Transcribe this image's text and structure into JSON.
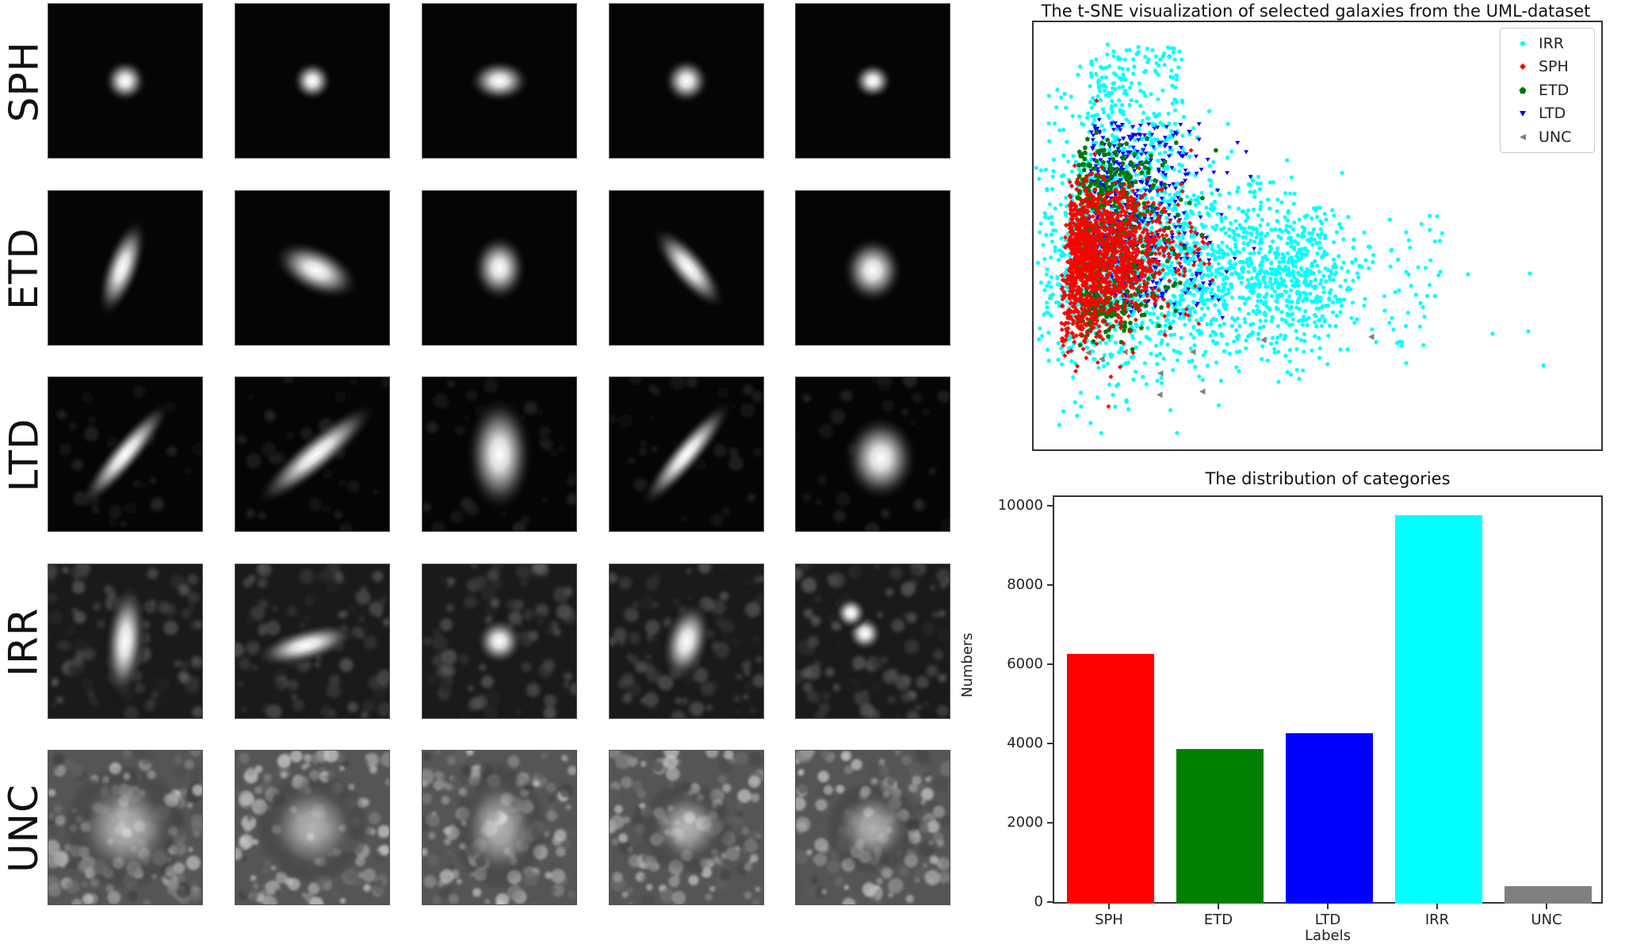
{
  "galaxy_grid": {
    "rows": [
      {
        "label": "SPH",
        "kind": "compact"
      },
      {
        "label": "ETD",
        "kind": "elliptical"
      },
      {
        "label": "LTD",
        "kind": "disk"
      },
      {
        "label": "IRR",
        "kind": "irregular"
      },
      {
        "label": "UNC",
        "kind": "noise"
      }
    ],
    "columns": 5
  },
  "chart_data": [
    {
      "type": "scatter",
      "title": "The t-SNE visualization of selected galaxies from the UML-dataset",
      "xlabel": "",
      "ylabel": "",
      "grid": false,
      "axis_ticks": false,
      "legend_position": "upper right",
      "legend": [
        {
          "name": "IRR",
          "color": "#00ffff",
          "marker": "circle"
        },
        {
          "name": "SPH",
          "color": "#ff0000",
          "marker": "diamond"
        },
        {
          "name": "ETD",
          "color": "#007700",
          "marker": "pentagon"
        },
        {
          "name": "LTD",
          "color": "#0000ff",
          "marker": "triangle-down"
        },
        {
          "name": "UNC",
          "color": "#808080",
          "marker": "triangle-left"
        }
      ],
      "series": [
        {
          "name": "IRR",
          "description": "widest spread; broad fan extending right, outliers far right",
          "approx_count": 9800
        },
        {
          "name": "SPH",
          "description": "dense cluster on far left, mid-lower region",
          "approx_count": 6300
        },
        {
          "name": "ETD",
          "description": "left cluster above SPH, overlapping LTD",
          "approx_count": 3900
        },
        {
          "name": "LTD",
          "description": "upper-left cluster, mixed with ETD and IRR",
          "approx_count": 4300
        },
        {
          "name": "UNC",
          "description": "sparse outliers below the main cloud",
          "approx_count": 440
        }
      ]
    },
    {
      "type": "bar",
      "title": "The distribution of categories",
      "xlabel": "Labels",
      "ylabel": "Numbers",
      "categories": [
        "SPH",
        "ETD",
        "LTD",
        "IRR",
        "UNC"
      ],
      "values": [
        6300,
        3900,
        4300,
        9800,
        440
      ],
      "colors": [
        "#ff0000",
        "#008000",
        "#0000ff",
        "#00ffff",
        "#808080"
      ],
      "yticks": [
        0,
        2000,
        4000,
        6000,
        8000,
        10000
      ],
      "ylim": [
        0,
        10300
      ],
      "grid": false
    }
  ],
  "tsne": {
    "title": "The t-SNE visualization of selected galaxies from the UML-dataset",
    "legend": [
      "IRR",
      "SPH",
      "ETD",
      "LTD",
      "UNC"
    ]
  },
  "bars": {
    "title": "The distribution of categories",
    "xlabel": "Labels",
    "ylabel": "Numbers",
    "yticks": [
      "0",
      "2000",
      "4000",
      "6000",
      "8000",
      "10000"
    ],
    "categories": [
      "SPH",
      "ETD",
      "LTD",
      "IRR",
      "UNC"
    ]
  }
}
